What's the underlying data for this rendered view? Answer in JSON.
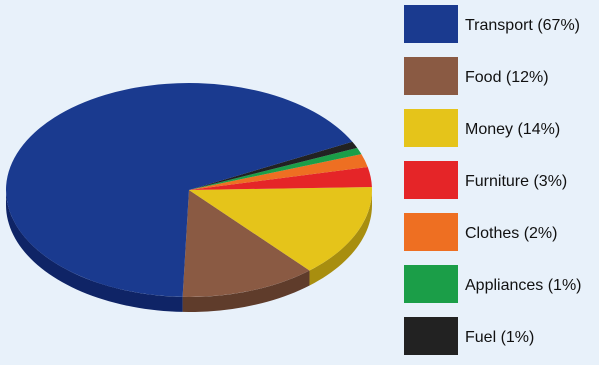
{
  "chart_data": {
    "type": "pie",
    "title": "",
    "series": [
      {
        "name": "Transport (67%)",
        "value": 67,
        "color": "#1a3a8f",
        "side_color": "#0f2466"
      },
      {
        "name": "Food (12%)",
        "value": 12,
        "color": "#8a5a43",
        "side_color": "#5f3c2b"
      },
      {
        "name": "Money (14%)",
        "value": 14,
        "color": "#e5c41a",
        "side_color": "#a88e0f"
      },
      {
        "name": "Furniture (3%)",
        "value": 3,
        "color": "#e52528",
        "side_color": "#a5191c"
      },
      {
        "name": "Clothes (2%)",
        "value": 2,
        "color": "#ee6f22",
        "side_color": "#b04e15"
      },
      {
        "name": "Appliances (1%)",
        "value": 1,
        "color": "#1b9e48",
        "side_color": "#126a30"
      },
      {
        "name": "Fuel (1%)",
        "value": 1,
        "color": "#222222",
        "side_color": "#111111"
      }
    ],
    "legend_placement": "right",
    "style": "3d"
  }
}
